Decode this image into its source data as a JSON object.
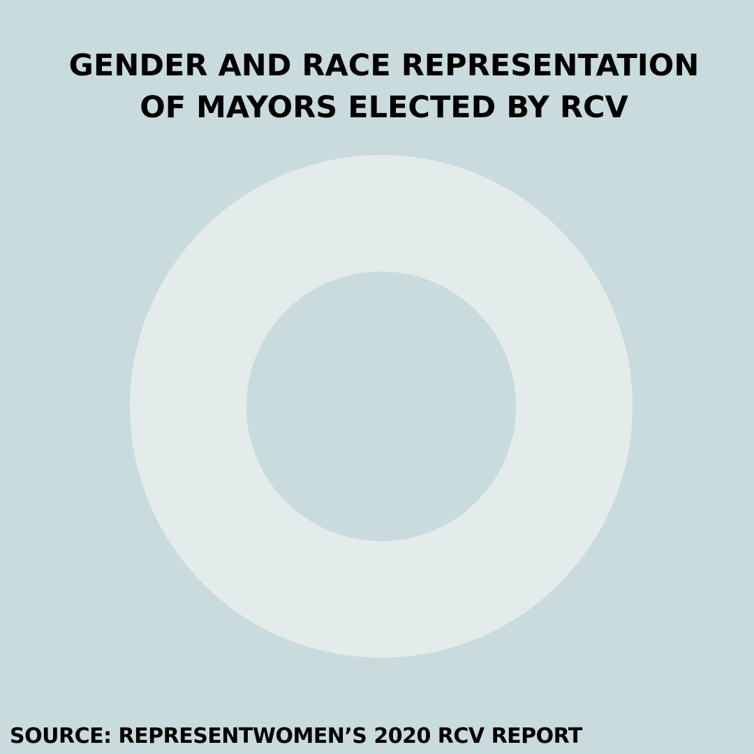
{
  "colors": {
    "background": "#C9DBDC",
    "ring": "#E3ECEB",
    "text": "#000000"
  },
  "header": {
    "title_line_1": "GENDER AND RACE REPRESENTATION",
    "title_line_2": "OF MAYORS ELECTED BY RCV"
  },
  "footer": {
    "source": "SOURCE:  REPRESENTWOMEN’S 2020 RCV REPORT"
  },
  "chart_data": {
    "type": "pie",
    "title": "GENDER AND RACE REPRESENTATION OF MAYORS ELECTED BY RCV",
    "categories": [],
    "values": []
  }
}
